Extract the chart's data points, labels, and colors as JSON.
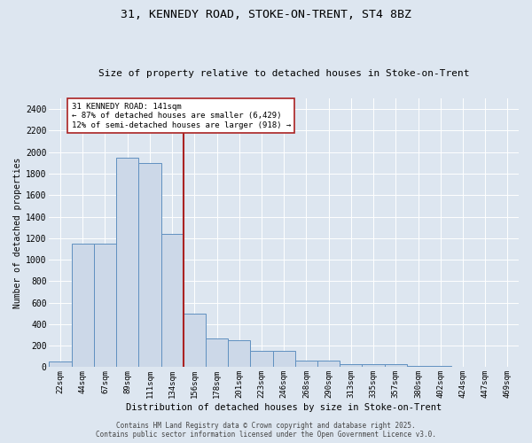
{
  "title1": "31, KENNEDY ROAD, STOKE-ON-TRENT, ST4 8BZ",
  "title2": "Size of property relative to detached houses in Stoke-on-Trent",
  "xlabel": "Distribution of detached houses by size in Stoke-on-Trent",
  "ylabel": "Number of detached properties",
  "categories": [
    "22sqm",
    "44sqm",
    "67sqm",
    "89sqm",
    "111sqm",
    "134sqm",
    "156sqm",
    "178sqm",
    "201sqm",
    "223sqm",
    "246sqm",
    "268sqm",
    "290sqm",
    "313sqm",
    "335sqm",
    "357sqm",
    "380sqm",
    "402sqm",
    "424sqm",
    "447sqm",
    "469sqm"
  ],
  "values": [
    50,
    1150,
    1150,
    1950,
    1900,
    1240,
    500,
    270,
    250,
    155,
    155,
    65,
    65,
    25,
    25,
    25,
    10,
    8,
    3,
    3,
    3
  ],
  "bar_color": "#ccd8e8",
  "bar_edge_color": "#6090c0",
  "highlight_color": "#aa2222",
  "vline_index": 5.5,
  "highlight_label_line1": "31 KENNEDY ROAD: 141sqm",
  "highlight_label_line2": "← 87% of detached houses are smaller (6,429)",
  "highlight_label_line3": "12% of semi-detached houses are larger (918) →",
  "ylim": [
    0,
    2500
  ],
  "yticks": [
    0,
    200,
    400,
    600,
    800,
    1000,
    1200,
    1400,
    1600,
    1800,
    2000,
    2200,
    2400
  ],
  "bg_color": "#dde6f0",
  "plot_bg_color": "#dde6f0",
  "grid_color": "#ffffff",
  "footer1": "Contains HM Land Registry data © Crown copyright and database right 2025.",
  "footer2": "Contains public sector information licensed under the Open Government Licence v3.0."
}
